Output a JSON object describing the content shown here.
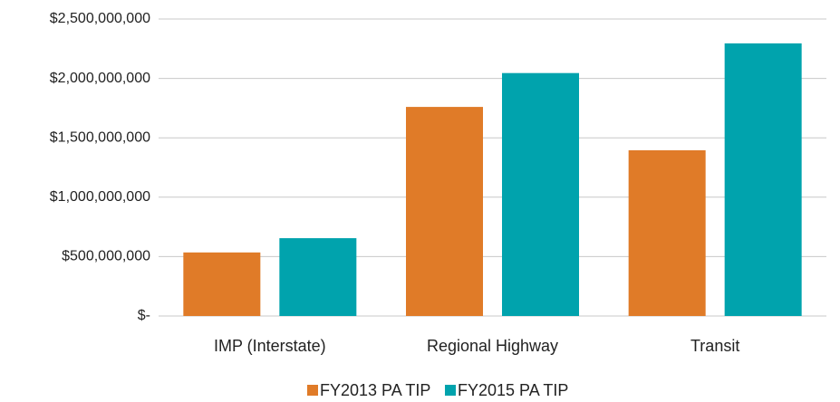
{
  "chart_data": {
    "type": "bar",
    "categories": [
      "IMP (Interstate)",
      "Regional Highway",
      "Transit"
    ],
    "series": [
      {
        "name": "FY2013 PA TIP",
        "color": "#e07b28",
        "values": [
          535000000,
          1760000000,
          1395000000
        ]
      },
      {
        "name": "FY2015 PA TIP",
        "color": "#00a3ad",
        "values": [
          655000000,
          2045000000,
          2295000000
        ]
      }
    ],
    "ylim": [
      0,
      2500000000
    ],
    "yticks": [
      {
        "value": 0,
        "label": "$-"
      },
      {
        "value": 500000000,
        "label": "$500,000,000"
      },
      {
        "value": 1000000000,
        "label": "$1,000,000,000"
      },
      {
        "value": 1500000000,
        "label": "$1,500,000,000"
      },
      {
        "value": 2000000000,
        "label": "$2,000,000,000"
      },
      {
        "value": 2500000000,
        "label": "$2,500,000,000"
      }
    ],
    "grid": true,
    "legend": "bottom"
  }
}
